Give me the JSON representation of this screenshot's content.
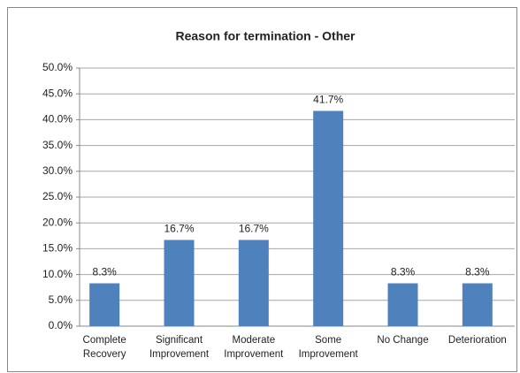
{
  "chart_data": {
    "type": "bar",
    "title": "Reason for termination - Other",
    "categories": [
      [
        "Complete",
        "Recovery"
      ],
      [
        "Significant",
        "Improvement"
      ],
      [
        "Moderate",
        "Improvement"
      ],
      [
        "Some",
        "Improvement"
      ],
      [
        "No Change"
      ],
      [
        "Deterioration"
      ]
    ],
    "values": [
      8.3,
      16.7,
      16.7,
      41.7,
      8.3,
      8.3
    ],
    "value_labels": [
      "8.3%",
      "16.7%",
      "16.7%",
      "41.7%",
      "8.3%",
      "8.3%"
    ],
    "color": "#4f81bd",
    "ylim": [
      0,
      50
    ],
    "yticks": [
      {
        "value": 0,
        "label": "0.0%"
      },
      {
        "value": 5,
        "label": "5.0%"
      },
      {
        "value": 10,
        "label": "10.0%"
      },
      {
        "value": 15,
        "label": "15.0%"
      },
      {
        "value": 20,
        "label": "20.0%"
      },
      {
        "value": 25,
        "label": "25.0%"
      },
      {
        "value": 30,
        "label": "30.0%"
      },
      {
        "value": 35,
        "label": "35.0%"
      },
      {
        "value": 40,
        "label": "40.0%"
      },
      {
        "value": 45,
        "label": "45.0%"
      },
      {
        "value": 50,
        "label": "50.0%"
      }
    ],
    "grid": true
  }
}
